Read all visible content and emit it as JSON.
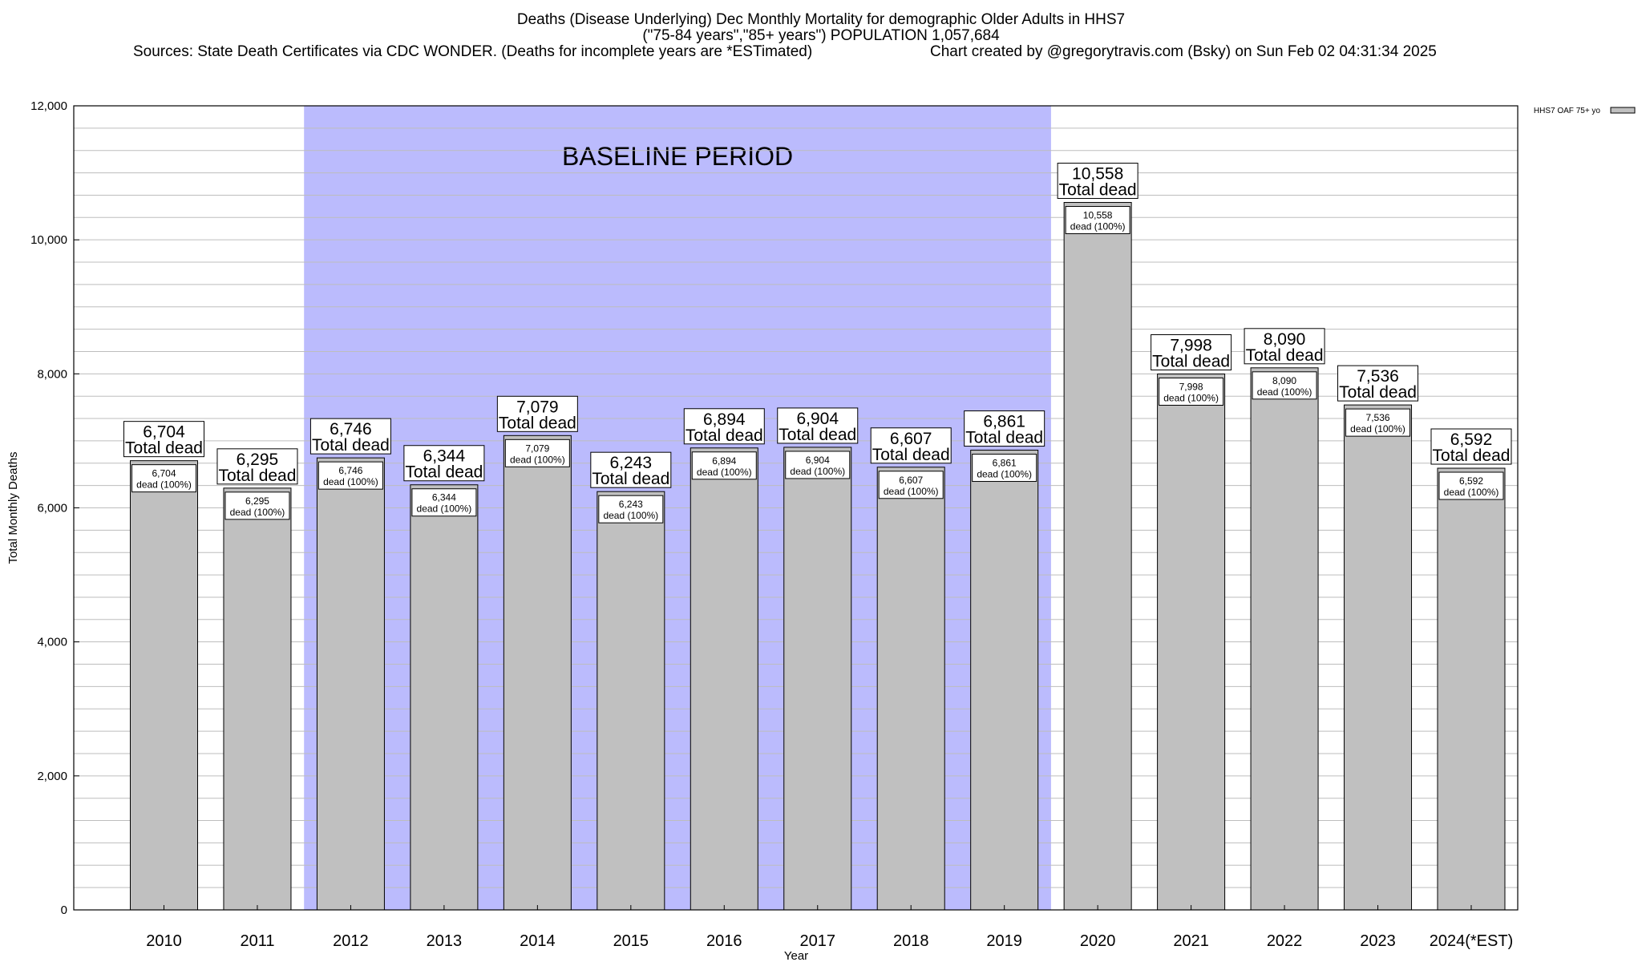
{
  "header": {
    "line1": "Deaths (Disease Underlying) Dec Monthly Mortality for demographic Older Adults in HHS7",
    "line2": "(\"75-84 years\",\"85+ years\") POPULATION 1,057,684",
    "line3_left": "Sources: State Death Certificates via CDC WONDER. (Deaths for incomplete years are *ESTimated)",
    "line3_right": "Chart created by @gregorytravis.com (Bsky) on Sun Feb 02 04:31:34 2025"
  },
  "colors": {
    "bar_fill": "#c0c0c0",
    "baseline_fill": "#bbbbfd",
    "grid": "#bdbdbd"
  },
  "chart_data": {
    "type": "bar",
    "xlabel": "Year",
    "ylabel": "Total Monthly Deaths",
    "ylim": [
      0,
      12000
    ],
    "yticks": [
      0,
      2000,
      4000,
      6000,
      8000,
      10000,
      12000
    ],
    "ytick_labels": [
      "0",
      "2,000",
      "4,000",
      "6,000",
      "8,000",
      "10,000",
      "12,000"
    ],
    "grid": true,
    "categories": [
      "2010",
      "2011",
      "2012",
      "2013",
      "2014",
      "2015",
      "2016",
      "2017",
      "2018",
      "2019",
      "2020",
      "2021",
      "2022",
      "2023",
      "2024(*EST)"
    ],
    "series": [
      {
        "name": "HHS7 OAF 75+ yo",
        "values": [
          6704,
          6295,
          6746,
          6344,
          7079,
          6243,
          6894,
          6904,
          6607,
          6861,
          10558,
          7998,
          8090,
          7536,
          6592
        ],
        "value_labels": [
          "6,704",
          "6,295",
          "6,746",
          "6,344",
          "7,079",
          "6,243",
          "6,894",
          "6,904",
          "6,607",
          "6,861",
          "10,558",
          "7,998",
          "8,090",
          "7,536",
          "6,592"
        ]
      }
    ],
    "total_label": "Total dead",
    "inner_label": "dead (100%)",
    "baseline": {
      "label": "BASELINE PERIOD",
      "from": "2012",
      "to": "2019"
    },
    "legend": {
      "position": "top-right",
      "entries": [
        "HHS7 OAF 75+ yo"
      ]
    }
  }
}
